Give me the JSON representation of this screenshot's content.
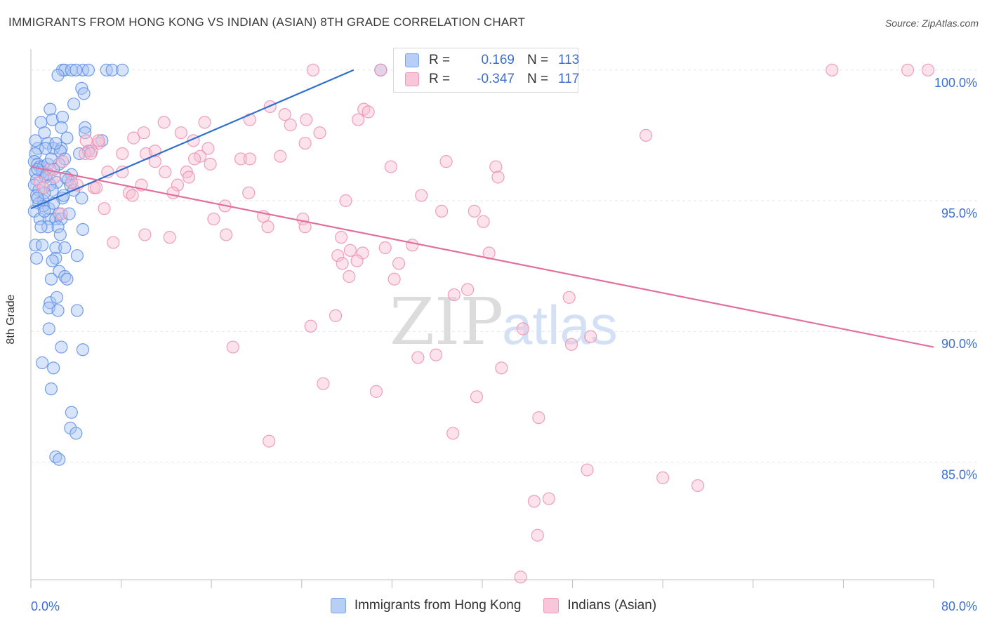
{
  "title": "IMMIGRANTS FROM HONG KONG VS INDIAN (ASIAN) 8TH GRADE CORRELATION CHART",
  "source": "Source: ZipAtlas.com",
  "watermark": {
    "zip": "ZIP",
    "atlas": "atlas"
  },
  "legend": {
    "r_label": "R =",
    "n_label": "N =",
    "series1": {
      "r": "0.169",
      "n": "113"
    },
    "series2": {
      "r": "-0.347",
      "n": "117"
    }
  },
  "chart_data": {
    "type": "scatter",
    "title": "IMMIGRANTS FROM HONG KONG VS INDIAN (ASIAN) 8TH GRADE CORRELATION CHART",
    "xlabel": "",
    "ylabel": "8th Grade",
    "xlim": [
      0,
      80
    ],
    "ylim": [
      80.5,
      100.8
    ],
    "x_tick_labels": [
      "0.0%",
      "80.0%"
    ],
    "y_ticks": [
      85,
      90,
      95,
      100
    ],
    "y_tick_labels": [
      "85.0%",
      "90.0%",
      "95.0%",
      "100.0%"
    ],
    "grid": true,
    "series": [
      {
        "name": "Immigrants from Hong Kong",
        "color": "#5b8ee8",
        "fill": "#a9c4f3",
        "trend": {
          "x": [
            0,
            28.6
          ],
          "y": [
            94.7,
            100.0
          ],
          "color": "#2f6fcf"
        },
        "points": [
          [
            2.8,
            100
          ],
          [
            3.0,
            100
          ],
          [
            4.6,
            100
          ],
          [
            3.6,
            100
          ],
          [
            4.0,
            100
          ],
          [
            5.1,
            100
          ],
          [
            6.7,
            100
          ],
          [
            7.2,
            100
          ],
          [
            8.1,
            100
          ],
          [
            31.0,
            100
          ],
          [
            2.4,
            99.8
          ],
          [
            4.5,
            99.3
          ],
          [
            4.7,
            99.1
          ],
          [
            1.7,
            98.5
          ],
          [
            3.8,
            98.7
          ],
          [
            1.9,
            98.1
          ],
          [
            2.8,
            98.2
          ],
          [
            2.7,
            97.8
          ],
          [
            0.9,
            98.0
          ],
          [
            4.8,
            97.8
          ],
          [
            1.2,
            97.6
          ],
          [
            4.8,
            97.6
          ],
          [
            3.2,
            97.4
          ],
          [
            6.3,
            97.3
          ],
          [
            1.5,
            97.2
          ],
          [
            2.0,
            97.0
          ],
          [
            0.6,
            97.0
          ],
          [
            1.3,
            97.0
          ],
          [
            2.7,
            97.0
          ],
          [
            0.4,
            96.8
          ],
          [
            2.6,
            96.9
          ],
          [
            3.0,
            96.6
          ],
          [
            5.1,
            96.9
          ],
          [
            0.3,
            96.5
          ],
          [
            0.6,
            96.4
          ],
          [
            0.8,
            96.3
          ],
          [
            1.1,
            96.3
          ],
          [
            1.5,
            96.4
          ],
          [
            2.5,
            96.4
          ],
          [
            0.4,
            96.1
          ],
          [
            1.0,
            96.1
          ],
          [
            1.6,
            96.0
          ],
          [
            3.6,
            96.0
          ],
          [
            0.5,
            95.8
          ],
          [
            1.3,
            95.9
          ],
          [
            2.3,
            95.7
          ],
          [
            3.3,
            95.8
          ],
          [
            0.3,
            95.6
          ],
          [
            1.7,
            95.6
          ],
          [
            3.5,
            95.6
          ],
          [
            0.7,
            95.4
          ],
          [
            1.9,
            95.4
          ],
          [
            0.5,
            95.2
          ],
          [
            1.1,
            95.0
          ],
          [
            2.8,
            95.1
          ],
          [
            4.5,
            95.1
          ],
          [
            0.7,
            94.9
          ],
          [
            1.6,
            94.7
          ],
          [
            2.0,
            94.9
          ],
          [
            1.1,
            94.8
          ],
          [
            0.3,
            94.6
          ],
          [
            2.5,
            94.5
          ],
          [
            0.8,
            94.3
          ],
          [
            1.6,
            94.3
          ],
          [
            2.2,
            94.3
          ],
          [
            2.7,
            94.3
          ],
          [
            1.5,
            94.0
          ],
          [
            2.4,
            94.0
          ],
          [
            4.6,
            93.9
          ],
          [
            0.4,
            93.3
          ],
          [
            1.0,
            93.3
          ],
          [
            2.2,
            93.2
          ],
          [
            3.0,
            93.2
          ],
          [
            0.5,
            92.8
          ],
          [
            2.2,
            92.8
          ],
          [
            4.1,
            92.9
          ],
          [
            2.5,
            92.3
          ],
          [
            1.8,
            92.0
          ],
          [
            3.0,
            92.1
          ],
          [
            3.2,
            92.0
          ],
          [
            1.7,
            91.1
          ],
          [
            1.6,
            90.9
          ],
          [
            2.4,
            90.8
          ],
          [
            4.1,
            90.8
          ],
          [
            1.6,
            90.1
          ],
          [
            2.7,
            89.4
          ],
          [
            4.6,
            89.3
          ],
          [
            1.0,
            88.8
          ],
          [
            2.0,
            88.6
          ],
          [
            1.8,
            87.8
          ],
          [
            3.6,
            86.9
          ],
          [
            3.5,
            86.3
          ],
          [
            4.0,
            86.1
          ],
          [
            2.2,
            85.2
          ],
          [
            2.5,
            85.1
          ],
          [
            0.6,
            96.2
          ],
          [
            1.2,
            95.3
          ],
          [
            2.9,
            95.2
          ],
          [
            0.9,
            94.0
          ],
          [
            3.4,
            94.5
          ],
          [
            1.8,
            96.6
          ],
          [
            2.2,
            97.2
          ],
          [
            0.6,
            95.1
          ],
          [
            1.4,
            96.0
          ],
          [
            3.1,
            95.9
          ],
          [
            2.6,
            93.7
          ],
          [
            1.9,
            92.7
          ],
          [
            2.3,
            91.3
          ],
          [
            0.4,
            97.3
          ],
          [
            4.3,
            96.8
          ],
          [
            3.8,
            95.4
          ],
          [
            1.2,
            94.6
          ],
          [
            2.0,
            96.2
          ]
        ]
      },
      {
        "name": "Indians (Asian)",
        "color": "#ec8fb0",
        "fill": "#f6bfd3",
        "trend": {
          "x": [
            0,
            80
          ],
          "y": [
            96.3,
            89.4
          ],
          "color": "#e2709a"
        },
        "points": [
          [
            25.0,
            100
          ],
          [
            31.0,
            100
          ],
          [
            71.0,
            100
          ],
          [
            77.7,
            100
          ],
          [
            79.5,
            100
          ],
          [
            21.2,
            98.6
          ],
          [
            22.5,
            98.3
          ],
          [
            24.4,
            98.1
          ],
          [
            29.5,
            98.5
          ],
          [
            29.9,
            98.4
          ],
          [
            19.4,
            98.1
          ],
          [
            23.0,
            97.9
          ],
          [
            29.0,
            98.1
          ],
          [
            11.8,
            98.0
          ],
          [
            15.4,
            98.0
          ],
          [
            10.0,
            97.6
          ],
          [
            13.3,
            97.6
          ],
          [
            25.6,
            97.6
          ],
          [
            54.5,
            97.5
          ],
          [
            14.4,
            97.3
          ],
          [
            24.3,
            97.2
          ],
          [
            6.0,
            97.2
          ],
          [
            6.0,
            97.3
          ],
          [
            4.9,
            97.3
          ],
          [
            9.1,
            97.4
          ],
          [
            15.7,
            97.0
          ],
          [
            5.4,
            96.9
          ],
          [
            8.1,
            96.8
          ],
          [
            10.2,
            96.8
          ],
          [
            11.0,
            96.9
          ],
          [
            15.0,
            96.7
          ],
          [
            4.8,
            96.8
          ],
          [
            5.3,
            96.8
          ],
          [
            14.5,
            96.6
          ],
          [
            18.6,
            96.6
          ],
          [
            19.4,
            96.6
          ],
          [
            22.1,
            96.7
          ],
          [
            36.8,
            96.5
          ],
          [
            2.8,
            96.5
          ],
          [
            11.0,
            96.5
          ],
          [
            15.9,
            96.4
          ],
          [
            31.9,
            96.3
          ],
          [
            41.2,
            96.3
          ],
          [
            8.1,
            96.1
          ],
          [
            11.9,
            96.1
          ],
          [
            13.8,
            96.1
          ],
          [
            1.7,
            96.2
          ],
          [
            14.0,
            95.9
          ],
          [
            41.4,
            95.9
          ],
          [
            0.8,
            95.7
          ],
          [
            4.1,
            95.6
          ],
          [
            5.6,
            95.5
          ],
          [
            9.8,
            95.6
          ],
          [
            13.0,
            95.6
          ],
          [
            1.1,
            95.5
          ],
          [
            5.8,
            95.5
          ],
          [
            8.7,
            95.3
          ],
          [
            19.3,
            95.3
          ],
          [
            34.6,
            95.2
          ],
          [
            9.0,
            95.2
          ],
          [
            27.9,
            95.0
          ],
          [
            17.2,
            94.8
          ],
          [
            6.5,
            94.7
          ],
          [
            36.4,
            94.6
          ],
          [
            39.3,
            94.6
          ],
          [
            2.7,
            94.5
          ],
          [
            16.2,
            94.3
          ],
          [
            20.6,
            94.4
          ],
          [
            24.1,
            94.3
          ],
          [
            40.1,
            94.2
          ],
          [
            21.0,
            94.0
          ],
          [
            24.3,
            94.0
          ],
          [
            10.1,
            93.7
          ],
          [
            12.3,
            93.6
          ],
          [
            17.3,
            93.7
          ],
          [
            27.5,
            93.6
          ],
          [
            7.3,
            93.4
          ],
          [
            28.3,
            93.1
          ],
          [
            31.4,
            93.2
          ],
          [
            29.4,
            93.0
          ],
          [
            40.6,
            93.0
          ],
          [
            27.2,
            92.9
          ],
          [
            28.9,
            92.7
          ],
          [
            32.6,
            92.6
          ],
          [
            28.2,
            92.1
          ],
          [
            32.2,
            92.0
          ],
          [
            37.5,
            91.4
          ],
          [
            38.7,
            91.6
          ],
          [
            47.7,
            91.3
          ],
          [
            27.0,
            90.6
          ],
          [
            24.8,
            90.2
          ],
          [
            43.6,
            90.1
          ],
          [
            47.9,
            89.5
          ],
          [
            49.6,
            89.8
          ],
          [
            17.9,
            89.4
          ],
          [
            34.3,
            89.0
          ],
          [
            35.9,
            89.1
          ],
          [
            41.7,
            88.6
          ],
          [
            25.9,
            88.0
          ],
          [
            30.6,
            87.7
          ],
          [
            39.5,
            87.5
          ],
          [
            45.0,
            86.7
          ],
          [
            37.4,
            86.1
          ],
          [
            21.1,
            85.8
          ],
          [
            49.3,
            84.7
          ],
          [
            56.0,
            84.4
          ],
          [
            59.1,
            84.1
          ],
          [
            45.9,
            83.6
          ],
          [
            44.6,
            83.5
          ],
          [
            44.9,
            82.2
          ],
          [
            43.4,
            80.6
          ],
          [
            3.6,
            95.7
          ],
          [
            2.1,
            95.9
          ],
          [
            6.8,
            96.1
          ],
          [
            12.6,
            95.3
          ],
          [
            33.8,
            93.3
          ],
          [
            27.6,
            92.6
          ]
        ]
      }
    ]
  }
}
